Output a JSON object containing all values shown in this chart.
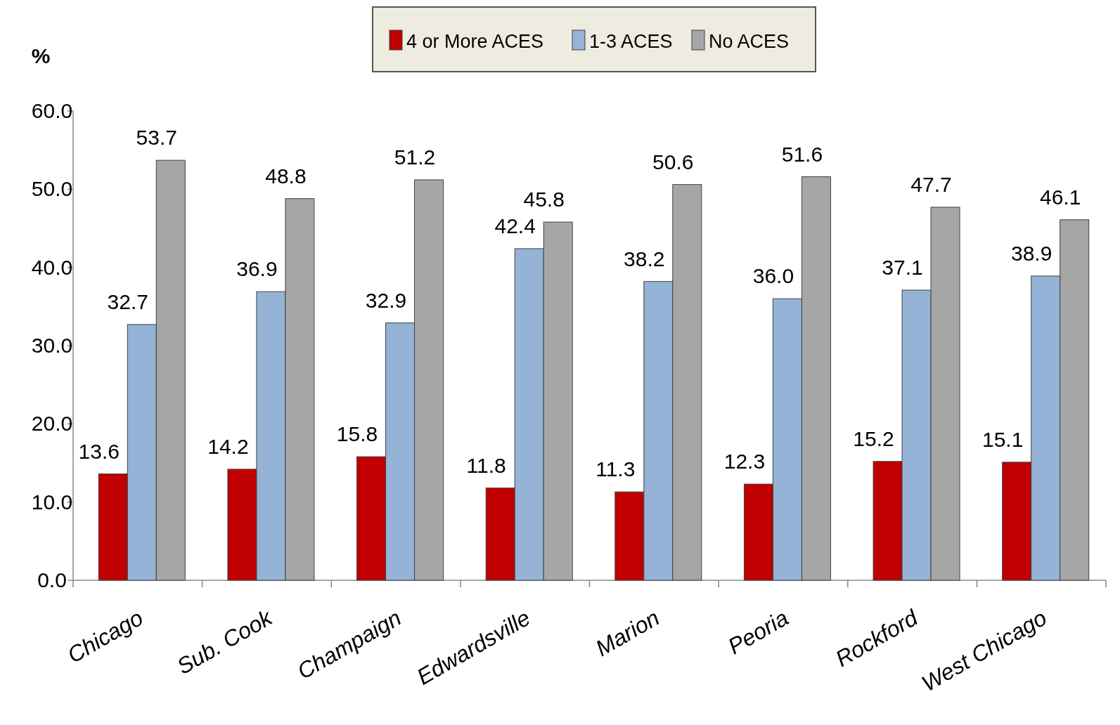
{
  "chart_data": {
    "type": "bar",
    "ylabel": "%",
    "categories": [
      "Chicago",
      "Sub. Cook",
      "Champaign",
      "Edwardsville",
      "Marion",
      "Peoria",
      "Rockford",
      "West Chicago"
    ],
    "series": [
      {
        "name": "4 or More ACES",
        "color": "#c00000",
        "values": [
          13.6,
          14.2,
          15.8,
          11.8,
          11.3,
          12.3,
          15.2,
          15.1
        ],
        "value_labels": [
          "13.6",
          "14.2",
          "15.8",
          "11.8",
          "11.3",
          "12.3",
          "15.2",
          "15.1"
        ]
      },
      {
        "name": "1-3 ACES",
        "color": "#95b3d7",
        "values": [
          32.7,
          36.9,
          32.9,
          42.4,
          38.2,
          36.0,
          37.1,
          38.9
        ],
        "value_labels": [
          "32.7",
          "36.9",
          "32.9",
          "42.4",
          "38.2",
          "36.0",
          "37.1",
          "38.9"
        ]
      },
      {
        "name": "No ACES",
        "color": "#a6a6a6",
        "values": [
          53.7,
          48.8,
          51.2,
          45.8,
          50.6,
          51.6,
          47.7,
          46.1
        ],
        "value_labels": [
          "53.7",
          "48.8",
          "51.2",
          "45.8",
          "50.6",
          "51.6",
          "47.7",
          "46.1"
        ]
      }
    ],
    "ylim": [
      0,
      60
    ],
    "yticks": [
      {
        "value": 0,
        "label": "0.0"
      },
      {
        "value": 10,
        "label": "10.0"
      },
      {
        "value": 20,
        "label": "20.0"
      },
      {
        "value": 30,
        "label": "30.0"
      },
      {
        "value": 40,
        "label": "40.0"
      },
      {
        "value": 50,
        "label": "50.0"
      },
      {
        "value": 60,
        "label": "60.0"
      }
    ],
    "legend": "top",
    "grid": false
  }
}
